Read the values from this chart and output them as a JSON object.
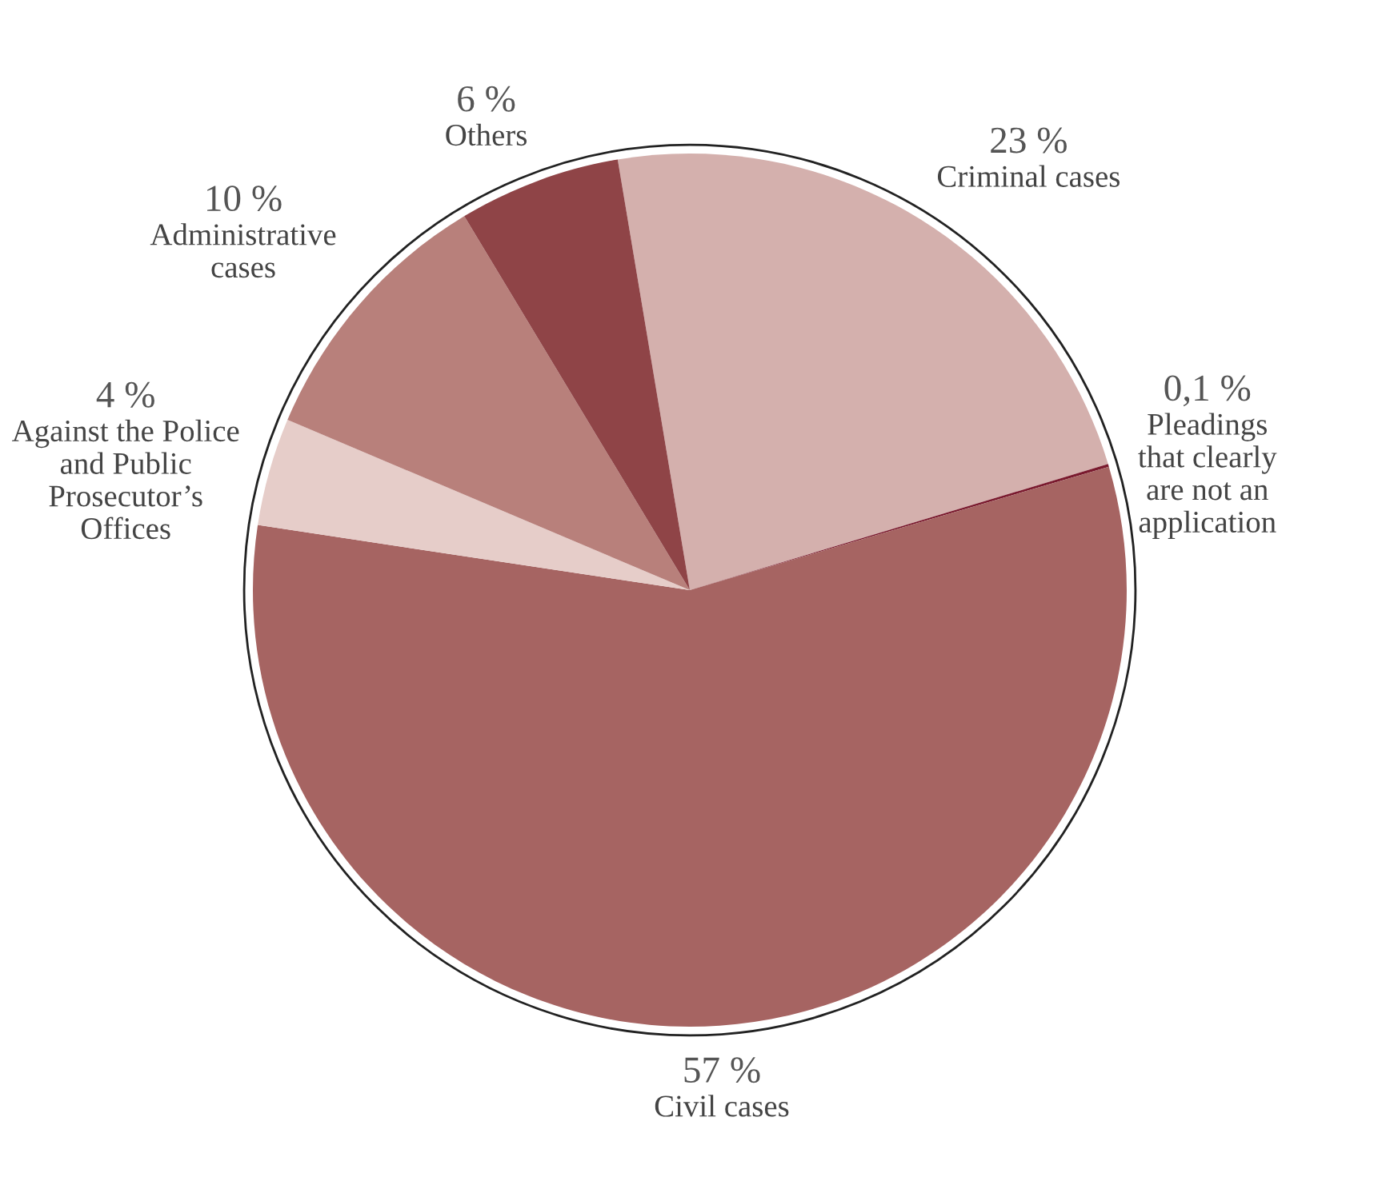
{
  "chart_data": {
    "type": "pie",
    "categories": [
      "Criminal cases",
      "Pleadings\nthat clearly\nare not an\napplication",
      "Civil cases",
      "Against the Police\nand Public\nProsecutor’s\nOffices",
      "Administrative\ncases",
      "Others"
    ],
    "values": [
      23,
      0.1,
      57,
      4,
      10,
      6
    ],
    "value_labels": [
      "23 %",
      "0,1 %",
      "57 %",
      "4 %",
      "10 %",
      "6 %"
    ],
    "colors": [
      "#d4b0ad",
      "#7a1a2e",
      "#a66462",
      "#e6cdc9",
      "#b8807b",
      "#8f4447"
    ]
  }
}
